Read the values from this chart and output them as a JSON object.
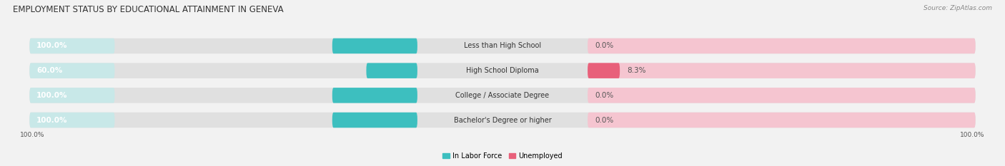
{
  "title": "EMPLOYMENT STATUS BY EDUCATIONAL ATTAINMENT IN GENEVA",
  "source": "Source: ZipAtlas.com",
  "categories": [
    "Less than High School",
    "High School Diploma",
    "College / Associate Degree",
    "Bachelor's Degree or higher"
  ],
  "in_labor_force": [
    100.0,
    60.0,
    100.0,
    100.0
  ],
  "unemployed": [
    0.0,
    8.3,
    0.0,
    0.0
  ],
  "color_labor": "#3dbfbf",
  "color_unemployed": "#e8607a",
  "color_labor_light": "#c8e8e8",
  "color_unemployed_light": "#f5c5d0",
  "bg_color": "#f2f2f2",
  "bar_bg_color": "#e0e0e0",
  "axis_label_left": "100.0%",
  "axis_label_right": "100.0%",
  "legend_labor": "In Labor Force",
  "legend_unemployed": "Unemployed",
  "title_fontsize": 8.5,
  "label_fontsize": 7.5,
  "cat_fontsize": 7.0,
  "source_fontsize": 6.5,
  "bar_height": 0.62,
  "max_val": 100.0,
  "unemp_display_min": 5.0,
  "label_0_display": "0.0%"
}
